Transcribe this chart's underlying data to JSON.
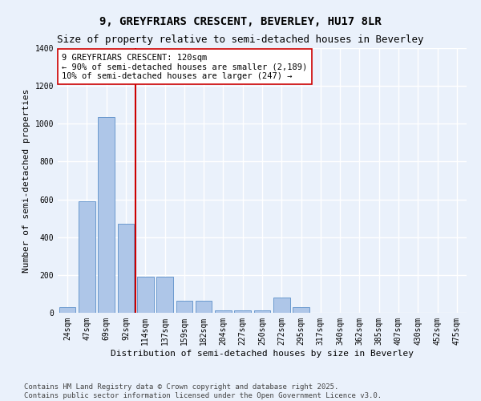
{
  "title": "9, GREYFRIARS CRESCENT, BEVERLEY, HU17 8LR",
  "subtitle": "Size of property relative to semi-detached houses in Beverley",
  "xlabel": "Distribution of semi-detached houses by size in Beverley",
  "ylabel": "Number of semi-detached properties",
  "categories": [
    "24sqm",
    "47sqm",
    "69sqm",
    "92sqm",
    "114sqm",
    "137sqm",
    "159sqm",
    "182sqm",
    "204sqm",
    "227sqm",
    "250sqm",
    "272sqm",
    "295sqm",
    "317sqm",
    "340sqm",
    "362sqm",
    "385sqm",
    "407sqm",
    "430sqm",
    "452sqm",
    "475sqm"
  ],
  "values": [
    28,
    590,
    1035,
    470,
    193,
    190,
    65,
    65,
    12,
    12,
    12,
    80,
    28,
    0,
    0,
    0,
    0,
    0,
    0,
    0,
    0
  ],
  "bar_color": "#aec6e8",
  "bar_edge_color": "#5b8fc9",
  "vline_x_idx": 4,
  "vline_color": "#cc0000",
  "annotation_line1": "9 GREYFRIARS CRESCENT: 120sqm",
  "annotation_line2": "← 90% of semi-detached houses are smaller (2,189)",
  "annotation_line3": "10% of semi-detached houses are larger (247) →",
  "ylim": [
    0,
    1400
  ],
  "yticks": [
    0,
    200,
    400,
    600,
    800,
    1000,
    1200,
    1400
  ],
  "background_color": "#eaf1fb",
  "plot_bg_color": "#eaf1fb",
  "grid_color": "#ffffff",
  "footer": "Contains HM Land Registry data © Crown copyright and database right 2025.\nContains public sector information licensed under the Open Government Licence v3.0.",
  "title_fontsize": 10,
  "subtitle_fontsize": 9,
  "axis_label_fontsize": 8,
  "tick_fontsize": 7,
  "annotation_fontsize": 7.5,
  "footer_fontsize": 6.5
}
